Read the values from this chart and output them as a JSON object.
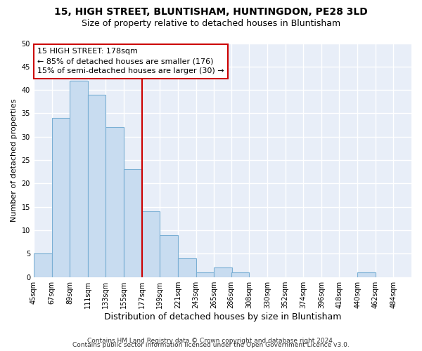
{
  "title1": "15, HIGH STREET, BLUNTISHAM, HUNTINGDON, PE28 3LD",
  "title2": "Size of property relative to detached houses in Bluntisham",
  "xlabel": "Distribution of detached houses by size in Bluntisham",
  "ylabel": "Number of detached properties",
  "bin_labels": [
    "45sqm",
    "67sqm",
    "89sqm",
    "111sqm",
    "133sqm",
    "155sqm",
    "177sqm",
    "199sqm",
    "221sqm",
    "243sqm",
    "265sqm",
    "286sqm",
    "308sqm",
    "330sqm",
    "352sqm",
    "374sqm",
    "396sqm",
    "418sqm",
    "440sqm",
    "462sqm",
    "484sqm"
  ],
  "bin_edges": [
    45,
    67,
    89,
    111,
    133,
    155,
    177,
    199,
    221,
    243,
    265,
    286,
    308,
    330,
    352,
    374,
    396,
    418,
    440,
    462,
    484
  ],
  "bar_heights": [
    5,
    34,
    42,
    39,
    32,
    23,
    14,
    9,
    4,
    1,
    2,
    1,
    0,
    0,
    0,
    0,
    0,
    0,
    1,
    0
  ],
  "bar_color": "#c8dcf0",
  "bar_edge_color": "#7aafd4",
  "vline_x": 177,
  "vline_color": "#cc0000",
  "annotation_text": "15 HIGH STREET: 178sqm\n← 85% of detached houses are smaller (176)\n15% of semi-detached houses are larger (30) →",
  "annotation_box_color": "#ffffff",
  "annotation_box_edge_color": "#cc0000",
  "ylim": [
    0,
    50
  ],
  "yticks": [
    0,
    5,
    10,
    15,
    20,
    25,
    30,
    35,
    40,
    45,
    50
  ],
  "footer1": "Contains HM Land Registry data © Crown copyright and database right 2024.",
  "footer2": "Contains public sector information licensed under the Open Government Licence v3.0.",
  "bg_color": "#ffffff",
  "plot_bg_color": "#e8eef8",
  "grid_color": "#ffffff",
  "title1_fontsize": 10,
  "title2_fontsize": 9,
  "xlabel_fontsize": 9,
  "ylabel_fontsize": 8,
  "tick_fontsize": 7,
  "footer_fontsize": 6.5,
  "annotation_fontsize": 8
}
